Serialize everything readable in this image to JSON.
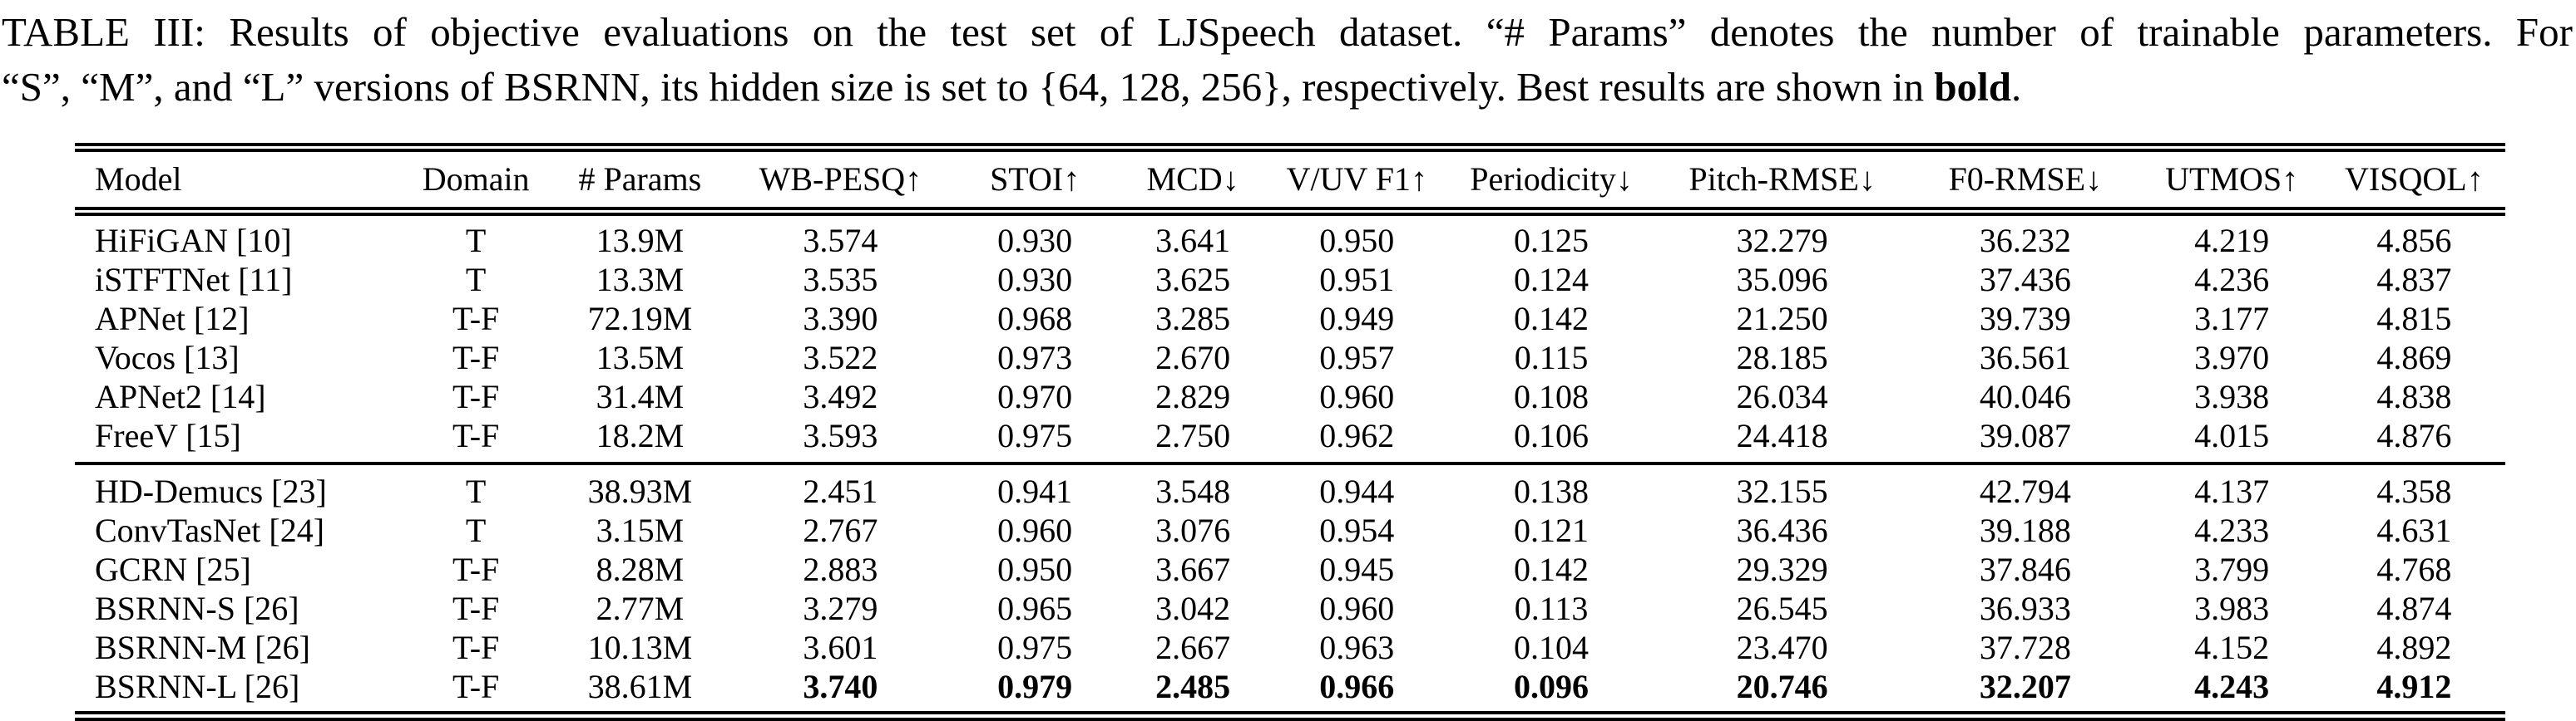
{
  "page": {
    "background_color": "#ffffff",
    "text_color": "#000000"
  },
  "caption": {
    "line1": "TABLE III: Results of objective evaluations on the test set of LJSpeech dataset. “# Params” denotes the number of trainable parameters. For",
    "line2_pre": "“S”, “M”, and “L” versions of BSRNN, its hidden size is set to {64, 128, 256}, respectively. Best results are shown in ",
    "line2_bold": "bold",
    "line2_post": "."
  },
  "table": {
    "columns": [
      "Model",
      "Domain",
      "# Params",
      "WB-PESQ↑",
      "STOI↑",
      "MCD↓",
      "V/UV F1↑",
      "Periodicity↓",
      "Pitch-RMSE↓",
      "F0-RMSE↓",
      "UTMOS↑",
      "VISQOL↑"
    ],
    "groups": [
      {
        "rows": [
          {
            "model": "HiFiGAN [10]",
            "domain": "T",
            "params": "13.9M",
            "metrics": [
              "3.574",
              "0.930",
              "3.641",
              "0.950",
              "0.125",
              "32.279",
              "36.232",
              "4.219",
              "4.856"
            ],
            "bold_metrics": false
          },
          {
            "model": "iSTFTNet [11]",
            "domain": "T",
            "params": "13.3M",
            "metrics": [
              "3.535",
              "0.930",
              "3.625",
              "0.951",
              "0.124",
              "35.096",
              "37.436",
              "4.236",
              "4.837"
            ],
            "bold_metrics": false
          },
          {
            "model": "APNet [12]",
            "domain": "T-F",
            "params": "72.19M",
            "metrics": [
              "3.390",
              "0.968",
              "3.285",
              "0.949",
              "0.142",
              "21.250",
              "39.739",
              "3.177",
              "4.815"
            ],
            "bold_metrics": false
          },
          {
            "model": "Vocos [13]",
            "domain": "T-F",
            "params": "13.5M",
            "metrics": [
              "3.522",
              "0.973",
              "2.670",
              "0.957",
              "0.115",
              "28.185",
              "36.561",
              "3.970",
              "4.869"
            ],
            "bold_metrics": false
          },
          {
            "model": "APNet2 [14]",
            "domain": "T-F",
            "params": "31.4M",
            "metrics": [
              "3.492",
              "0.970",
              "2.829",
              "0.960",
              "0.108",
              "26.034",
              "40.046",
              "3.938",
              "4.838"
            ],
            "bold_metrics": false
          },
          {
            "model": "FreeV [15]",
            "domain": "T-F",
            "params": "18.2M",
            "metrics": [
              "3.593",
              "0.975",
              "2.750",
              "0.962",
              "0.106",
              "24.418",
              "39.087",
              "4.015",
              "4.876"
            ],
            "bold_metrics": false
          }
        ]
      },
      {
        "rows": [
          {
            "model": "HD-Demucs [23]",
            "domain": "T",
            "params": "38.93M",
            "metrics": [
              "2.451",
              "0.941",
              "3.548",
              "0.944",
              "0.138",
              "32.155",
              "42.794",
              "4.137",
              "4.358"
            ],
            "bold_metrics": false
          },
          {
            "model": "ConvTasNet [24]",
            "domain": "T",
            "params": "3.15M",
            "metrics": [
              "2.767",
              "0.960",
              "3.076",
              "0.954",
              "0.121",
              "36.436",
              "39.188",
              "4.233",
              "4.631"
            ],
            "bold_metrics": false
          },
          {
            "model": "GCRN [25]",
            "domain": "T-F",
            "params": "8.28M",
            "metrics": [
              "2.883",
              "0.950",
              "3.667",
              "0.945",
              "0.142",
              "29.329",
              "37.846",
              "3.799",
              "4.768"
            ],
            "bold_metrics": false
          },
          {
            "model": "BSRNN-S [26]",
            "domain": "T-F",
            "params": "2.77M",
            "metrics": [
              "3.279",
              "0.965",
              "3.042",
              "0.960",
              "0.113",
              "26.545",
              "36.933",
              "3.983",
              "4.874"
            ],
            "bold_metrics": false
          },
          {
            "model": "BSRNN-M [26]",
            "domain": "T-F",
            "params": "10.13M",
            "metrics": [
              "3.601",
              "0.975",
              "2.667",
              "0.963",
              "0.104",
              "23.470",
              "37.728",
              "4.152",
              "4.892"
            ],
            "bold_metrics": false
          },
          {
            "model": "BSRNN-L [26]",
            "domain": "T-F",
            "params": "38.61M",
            "metrics": [
              "3.740",
              "0.979",
              "2.485",
              "0.966",
              "0.096",
              "20.746",
              "32.207",
              "4.243",
              "4.912"
            ],
            "bold_metrics": true
          }
        ]
      }
    ]
  }
}
